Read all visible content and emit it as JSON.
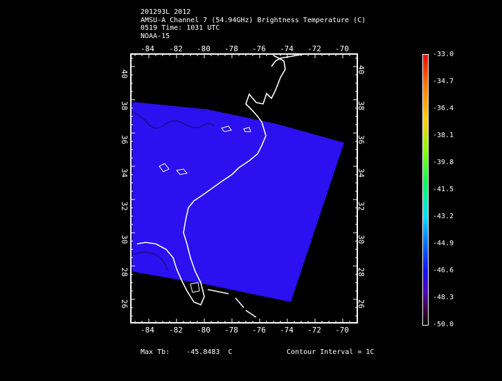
{
  "header": {
    "line1": "201293L 2012",
    "line2": "AMSU-A Channel 7 (54.94GHz) Brightness Temperature (C)",
    "line3": "0519 Time: 1031 UTC",
    "line4": "NOAA-15"
  },
  "map": {
    "lon_ticks": [
      "-84",
      "-82",
      "-80",
      "-78",
      "-76",
      "-74",
      "-72",
      "-70"
    ],
    "lat_ticks": [
      "40",
      "38",
      "36",
      "34",
      "32",
      "30",
      "28",
      "26"
    ],
    "swath_color": "#2b10f0",
    "background": "#000000"
  },
  "colorbar": {
    "labels": [
      "-33.0",
      "-34.7",
      "-36.4",
      "-38.1",
      "-39.8",
      "-41.5",
      "-43.2",
      "-44.9",
      "-46.6",
      "-48.3",
      "-50.0"
    ]
  },
  "footer": {
    "max_label": "Max Tb:",
    "max_value": "-45.8483",
    "max_unit": "C",
    "contour_interval": "Contour Interval = 1C"
  }
}
